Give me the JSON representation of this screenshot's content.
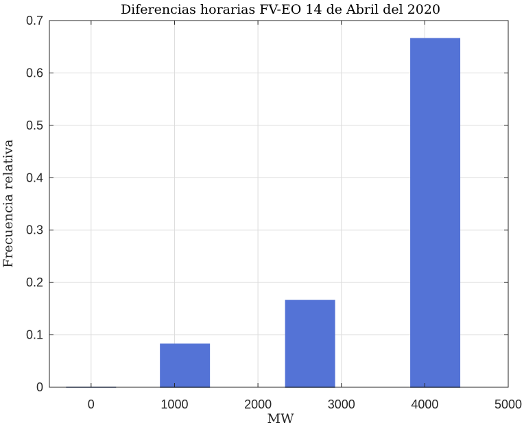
{
  "chart_data": {
    "type": "bar",
    "title": "Diferencias horarias FV-EO 14 de Abril del 2020",
    "xlabel": "MW",
    "ylabel": "Frecuencia relativa",
    "xlim": [
      -500,
      5000
    ],
    "ylim": [
      0,
      0.7
    ],
    "xticks": [
      0,
      1000,
      2000,
      3000,
      4000,
      5000
    ],
    "xtick_labels": [
      "0",
      "1000",
      "2000",
      "3000",
      "4000",
      "5000"
    ],
    "yticks": [
      0,
      0.1,
      0.2,
      0.3,
      0.4,
      0.5,
      0.6,
      0.7
    ],
    "ytick_labels": [
      "0",
      "0.1",
      "0.2",
      "0.3",
      "0.4",
      "0.5",
      "0.6",
      "0.7"
    ],
    "bin_width": 1500,
    "bins": [
      {
        "x": 0,
        "value": 0
      },
      {
        "x": 1500,
        "value": 0.0833
      },
      {
        "x": 3000,
        "value": 0.1667
      },
      {
        "x": 4500,
        "value": 0.6667
      }
    ],
    "bar_color": "#5473d6",
    "grid": true
  }
}
